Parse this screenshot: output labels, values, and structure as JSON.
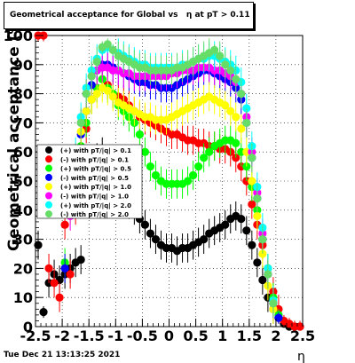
{
  "chart_data": {
    "type": "scatter",
    "title": "Geometrical acceptance for Global vs   η at pT > 0.11",
    "xlabel": "η",
    "ylabel": "Geometrical acceptance (%)",
    "xlim": [
      -2.5,
      2.5
    ],
    "ylim": [
      0,
      100
    ],
    "xticks": [
      "-2.5",
      "-2",
      "-1.5",
      "-1",
      "-0.5",
      "0",
      "0.5",
      "1",
      "1.5",
      "2",
      "2.5"
    ],
    "yticks": [
      "0",
      "10",
      "20",
      "30",
      "40",
      "50",
      "60",
      "70",
      "80",
      "90",
      "100"
    ],
    "grid": true,
    "legend_placement": "left",
    "series": [
      {
        "name": "(+) with pT/|q| > 0.1",
        "color": "#000000",
        "x": [
          -2.45,
          -2.35,
          -2.25,
          -2.15,
          -2.05,
          -1.95,
          -1.85,
          -1.75,
          -1.65,
          -1.55,
          -1.45,
          -1.35,
          -1.25,
          -1.15,
          -1.05,
          -0.95,
          -0.85,
          -0.75,
          -0.65,
          -0.55,
          -0.45,
          -0.35,
          -0.25,
          -0.15,
          -0.05,
          0.05,
          0.15,
          0.25,
          0.35,
          0.45,
          0.55,
          0.65,
          0.75,
          0.85,
          0.95,
          1.05,
          1.15,
          1.25,
          1.35,
          1.45,
          1.55,
          1.65,
          1.75,
          1.85,
          1.95,
          2.05,
          2.15,
          2.25,
          2.35,
          2.45
        ],
        "y": [
          28,
          5,
          15,
          18,
          16,
          18,
          20,
          22,
          23,
          48,
          55,
          58,
          60,
          56,
          52,
          48,
          45,
          42,
          40,
          37,
          35,
          32,
          30,
          28,
          27,
          27,
          26,
          27,
          27,
          28,
          29,
          30,
          32,
          33,
          34,
          35,
          37,
          38,
          37,
          33,
          28,
          22,
          16,
          10,
          6,
          3,
          1,
          0,
          0,
          0
        ]
      },
      {
        "name": "(-) with pT/|q| > 0.1",
        "color": "#ff0000",
        "x": [
          -2.45,
          -2.35,
          -2.25,
          -2.15,
          -2.05,
          -1.95,
          -1.85,
          -1.75,
          -1.65,
          -1.55,
          -1.45,
          -1.35,
          -1.25,
          -1.15,
          -1.05,
          -0.95,
          -0.85,
          -0.75,
          -0.65,
          -0.55,
          -0.45,
          -0.35,
          -0.25,
          -0.15,
          -0.05,
          0.05,
          0.15,
          0.25,
          0.35,
          0.45,
          0.55,
          0.65,
          0.75,
          0.85,
          0.95,
          1.05,
          1.15,
          1.25,
          1.35,
          1.45,
          1.55,
          1.65,
          1.75,
          1.85,
          1.95,
          2.05,
          2.15,
          2.25,
          2.35,
          2.45
        ],
        "y": [
          100,
          100,
          20,
          15,
          10,
          35,
          18,
          40,
          60,
          68,
          78,
          82,
          85,
          83,
          80,
          79,
          78,
          76,
          74,
          72,
          71,
          70,
          69,
          68,
          67,
          66,
          66,
          65,
          64,
          64,
          63,
          63,
          62,
          62,
          61,
          61,
          60,
          58,
          55,
          50,
          42,
          35,
          28,
          20,
          12,
          6,
          2,
          1,
          0,
          0
        ]
      },
      {
        "name": "(+) with pT/|q| > 0.5",
        "color": "#00ff00",
        "x": [
          -1.95,
          -1.85,
          -1.75,
          -1.65,
          -1.55,
          -1.45,
          -1.35,
          -1.25,
          -1.15,
          -1.05,
          -0.95,
          -0.85,
          -0.75,
          -0.65,
          -0.55,
          -0.45,
          -0.35,
          -0.25,
          -0.15,
          -0.05,
          0.05,
          0.15,
          0.25,
          0.35,
          0.45,
          0.55,
          0.65,
          0.75,
          0.85,
          0.95,
          1.05,
          1.15,
          1.25,
          1.35,
          1.45,
          1.55,
          1.65,
          1.75,
          1.85,
          1.95,
          2.05
        ],
        "y": [
          22,
          40,
          55,
          62,
          70,
          78,
          82,
          85,
          82,
          80,
          76,
          74,
          72,
          70,
          66,
          60,
          55,
          52,
          50,
          49,
          49,
          49,
          49,
          50,
          52,
          55,
          58,
          60,
          62,
          63,
          64,
          64,
          63,
          60,
          55,
          48,
          40,
          30,
          20,
          10,
          4
        ]
      },
      {
        "name": "(-) with pT/|q| > 0.5",
        "color": "#0000ff",
        "x": [
          -1.95,
          -1.85,
          -1.75,
          -1.65,
          -1.55,
          -1.45,
          -1.35,
          -1.25,
          -1.15,
          -1.05,
          -0.95,
          -0.85,
          -0.75,
          -0.65,
          -0.55,
          -0.45,
          -0.35,
          -0.25,
          -0.15,
          -0.05,
          0.05,
          0.15,
          0.25,
          0.35,
          0.45,
          0.55,
          0.65,
          0.75,
          0.85,
          0.95,
          1.05,
          1.15,
          1.25,
          1.35,
          1.45,
          1.55,
          1.65,
          1.75,
          1.85,
          1.95,
          2.05
        ],
        "y": [
          20,
          42,
          58,
          66,
          74,
          83,
          88,
          90,
          90,
          89,
          88,
          87,
          86,
          85,
          84,
          84,
          83,
          83,
          82,
          82,
          82,
          83,
          84,
          85,
          86,
          87,
          88,
          88,
          87,
          86,
          85,
          84,
          82,
          78,
          70,
          58,
          44,
          30,
          18,
          8,
          3
        ]
      },
      {
        "name": "(+) with pT/|q| > 1.0",
        "color": "#ffff00",
        "x": [
          -1.85,
          -1.75,
          -1.65,
          -1.55,
          -1.45,
          -1.35,
          -1.25,
          -1.15,
          -1.05,
          -0.95,
          -0.85,
          -0.75,
          -0.65,
          -0.55,
          -0.45,
          -0.35,
          -0.25,
          -0.15,
          -0.05,
          0.05,
          0.15,
          0.25,
          0.35,
          0.45,
          0.55,
          0.65,
          0.75,
          0.85,
          0.95,
          1.05,
          1.15,
          1.25,
          1.35,
          1.45,
          1.55,
          1.65,
          1.75,
          1.85,
          1.95
        ],
        "y": [
          40,
          55,
          67,
          74,
          78,
          80,
          82,
          81,
          79,
          77,
          76,
          75,
          74,
          73,
          72,
          72,
          71,
          71,
          71,
          72,
          73,
          74,
          75,
          76,
          77,
          78,
          79,
          78,
          77,
          76,
          74,
          72,
          68,
          60,
          50,
          38,
          25,
          14,
          6
        ]
      },
      {
        "name": "(-) with pT/|q| > 1.0",
        "color": "#ff00ff",
        "x": [
          -1.85,
          -1.75,
          -1.65,
          -1.55,
          -1.45,
          -1.35,
          -1.25,
          -1.15,
          -1.05,
          -0.95,
          -0.85,
          -0.75,
          -0.65,
          -0.55,
          -0.45,
          -0.35,
          -0.25,
          -0.15,
          -0.05,
          0.05,
          0.15,
          0.25,
          0.35,
          0.45,
          0.55,
          0.65,
          0.75,
          0.85,
          0.95,
          1.05,
          1.15,
          1.25,
          1.35,
          1.45,
          1.55,
          1.65,
          1.75,
          1.85,
          1.95
        ],
        "y": [
          38,
          56,
          70,
          80,
          86,
          88,
          89,
          89,
          88,
          88,
          87,
          87,
          86,
          86,
          86,
          86,
          86,
          86,
          86,
          87,
          87,
          88,
          88,
          88,
          89,
          89,
          89,
          88,
          88,
          87,
          86,
          84,
          80,
          72,
          60,
          46,
          32,
          18,
          8
        ]
      },
      {
        "name": "(+) with pT/|q| > 2.0",
        "color": "#00ffff",
        "x": [
          -1.85,
          -1.75,
          -1.65,
          -1.55,
          -1.45,
          -1.35,
          -1.25,
          -1.15,
          -1.05,
          -0.95,
          -0.85,
          -0.75,
          -0.65,
          -0.55,
          -0.45,
          -0.35,
          -0.25,
          -0.15,
          -0.05,
          0.05,
          0.15,
          0.25,
          0.35,
          0.45,
          0.55,
          0.65,
          0.75,
          0.85,
          0.95,
          1.05,
          1.15,
          1.25,
          1.35,
          1.45,
          1.55,
          1.65,
          1.75,
          1.85,
          1.95
        ],
        "y": [
          45,
          60,
          72,
          82,
          88,
          92,
          95,
          96,
          95,
          94,
          93,
          92,
          91,
          90,
          90,
          89,
          89,
          89,
          89,
          89,
          89,
          90,
          90,
          91,
          92,
          92,
          93,
          93,
          92,
          91,
          90,
          88,
          84,
          75,
          62,
          48,
          34,
          20,
          9
        ]
      },
      {
        "name": "(-) with pT/|q| > 2.0",
        "color": "#66dd66",
        "x": [
          -1.85,
          -1.75,
          -1.65,
          -1.55,
          -1.45,
          -1.35,
          -1.25,
          -1.15,
          -1.05,
          -0.95,
          -0.85,
          -0.75,
          -0.65,
          -0.55,
          -0.45,
          -0.35,
          -0.25,
          -0.15,
          -0.05,
          0.05,
          0.15,
          0.25,
          0.35,
          0.45,
          0.55,
          0.65,
          0.75,
          0.85,
          0.95,
          1.05,
          1.15,
          1.25,
          1.35,
          1.45,
          1.55,
          1.65,
          1.75,
          1.85,
          1.95
        ],
        "y": [
          42,
          58,
          70,
          80,
          86,
          91,
          96,
          97,
          95,
          93,
          92,
          91,
          90,
          89,
          89,
          88,
          88,
          88,
          88,
          88,
          89,
          89,
          90,
          91,
          92,
          93,
          94,
          95,
          93,
          90,
          88,
          85,
          80,
          70,
          58,
          44,
          30,
          18,
          8
        ]
      }
    ]
  },
  "footer": {
    "timestamp": "Tue Dec 21 13:13:25 2021"
  }
}
